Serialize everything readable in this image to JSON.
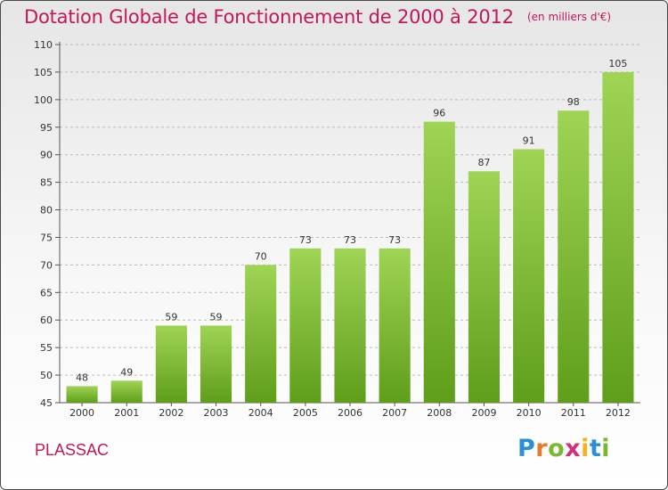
{
  "header": {
    "title": "Dotation Globale de Fonctionnement de 2000 à 2012",
    "subtitle": "(en milliers d'€)"
  },
  "footer": {
    "commune": "PLASSAC",
    "logo": {
      "text": "Proxiti",
      "letters": [
        {
          "char": "P",
          "color": "#2a8fd6"
        },
        {
          "char": "r",
          "color": "#e8792a"
        },
        {
          "char": "o",
          "color": "#7cb82f"
        },
        {
          "char": "x",
          "color": "#d2307c"
        },
        {
          "char": "i",
          "color": "#f0b420"
        },
        {
          "char": "t",
          "color": "#2a8fd6"
        },
        {
          "char": "i",
          "color": "#7cb82f"
        }
      ]
    }
  },
  "colors": {
    "accent": "#c0185d",
    "bar_top": "#9fd454",
    "bar_bottom": "#5f9e1a",
    "grid": "#bbbbbb"
  },
  "chart_data": {
    "type": "bar",
    "title": "Dotation Globale de Fonctionnement de 2000 à 2012",
    "subtitle": "(en milliers d'€)",
    "xlabel": "",
    "ylabel": "",
    "categories": [
      "2000",
      "2001",
      "2002",
      "2003",
      "2004",
      "2005",
      "2006",
      "2007",
      "2008",
      "2009",
      "2010",
      "2011",
      "2012"
    ],
    "values": [
      48,
      49,
      59,
      59,
      70,
      73,
      73,
      73,
      96,
      87,
      91,
      98,
      105
    ],
    "ylim": [
      45,
      110
    ],
    "yticks": [
      45,
      50,
      55,
      60,
      65,
      70,
      75,
      80,
      85,
      90,
      95,
      100,
      105,
      110
    ],
    "grid": true,
    "data_labels": true
  }
}
